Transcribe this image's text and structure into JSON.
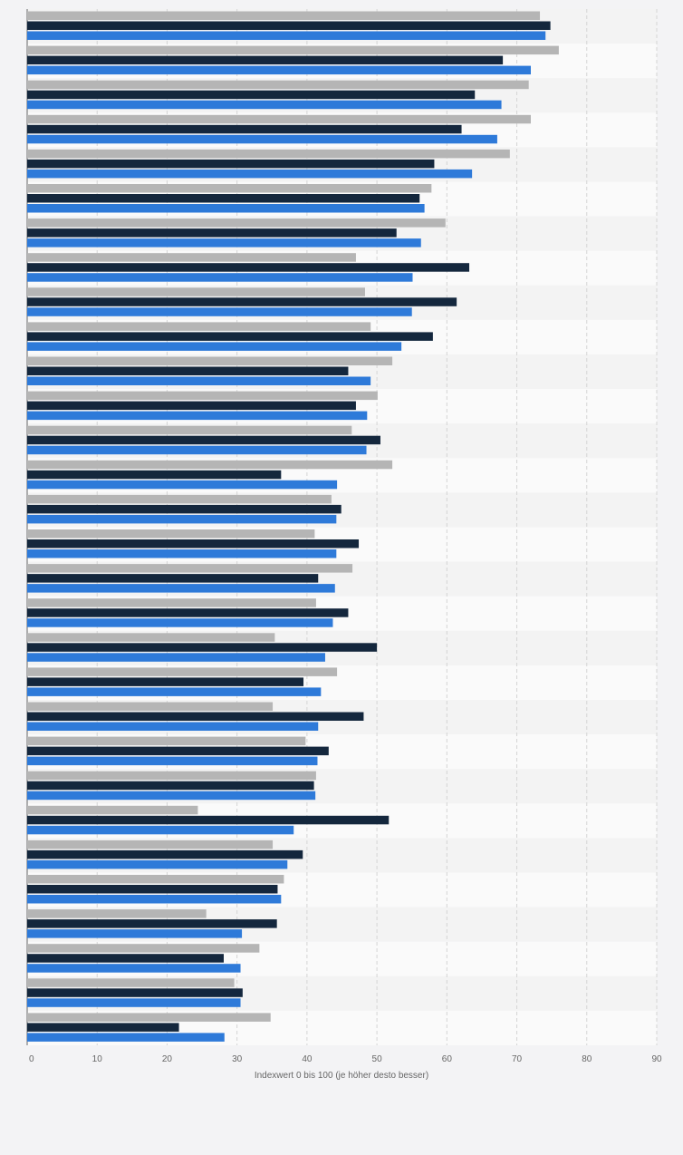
{
  "chart_data": {
    "type": "bar",
    "orientation": "horizontal",
    "xlabel": "Indexwert 0 bis 100 (je höher desto besser)",
    "xlim": [
      0,
      90
    ],
    "xticks": [
      0,
      10,
      20,
      30,
      40,
      50,
      60,
      70,
      80,
      90
    ],
    "grid": true,
    "colors": [
      "#b5b5b5",
      "#14273d",
      "#2e7ad9"
    ],
    "series": [
      {
        "values": [
          73.3,
          76.0,
          71.7,
          72.0,
          69.0,
          57.8,
          59.8,
          47.0,
          48.3,
          49.1,
          52.2,
          50.1,
          46.4,
          52.2,
          43.5,
          41.1,
          46.5,
          41.3,
          35.4,
          44.3,
          35.1,
          39.8,
          41.3,
          24.4,
          35.1,
          36.7,
          25.6,
          33.2,
          29.6,
          34.8
        ]
      },
      {
        "values": [
          74.8,
          68.0,
          64.0,
          62.1,
          58.2,
          56.1,
          52.8,
          63.2,
          61.4,
          58.0,
          45.9,
          47.0,
          50.5,
          36.3,
          44.9,
          47.4,
          41.6,
          45.9,
          50.0,
          39.5,
          48.1,
          43.1,
          41.0,
          51.7,
          39.4,
          35.8,
          35.7,
          28.1,
          30.8,
          21.7
        ]
      },
      {
        "values": [
          74.1,
          72.0,
          67.8,
          67.2,
          63.6,
          56.8,
          56.3,
          55.1,
          55.0,
          53.5,
          49.1,
          48.6,
          48.5,
          44.3,
          44.2,
          44.2,
          44.0,
          43.7,
          42.6,
          42.0,
          41.6,
          41.5,
          41.2,
          38.1,
          37.2,
          36.3,
          30.7,
          30.5,
          30.5,
          28.2
        ]
      }
    ]
  }
}
